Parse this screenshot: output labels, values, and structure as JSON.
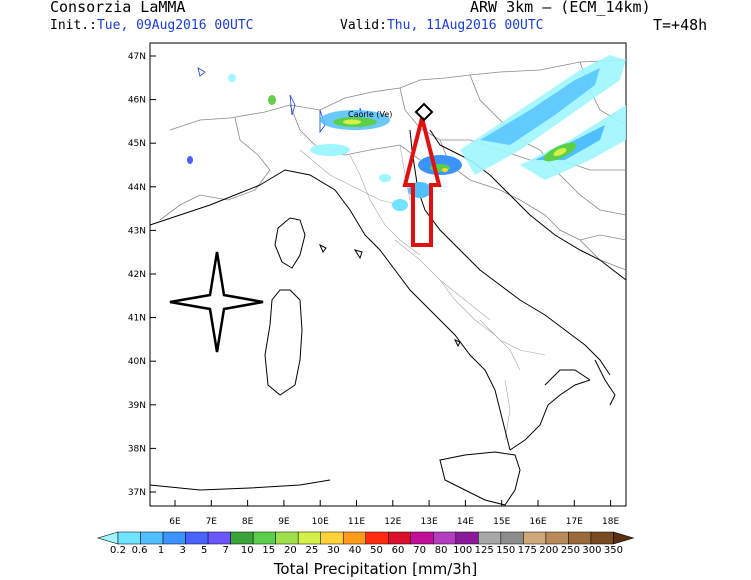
{
  "header": {
    "org": "Consorzia LaMMA",
    "model": "ARW 3km – (ECM_14km)",
    "init_label": "Init.:",
    "init_value": "Tue, 09Aug2016 00UTC",
    "valid_label": "Valid:",
    "valid_value": "Thu, 11Aug2016 00UTC",
    "lead_time": "T=+48h"
  },
  "map": {
    "place_label": "Caorle (Ve)",
    "lat_ticks": [
      "47N",
      "46N",
      "45N",
      "44N",
      "43N",
      "42N",
      "41N",
      "40N",
      "39N",
      "38N",
      "37N"
    ],
    "lon_ticks": [
      "6E",
      "7E",
      "8E",
      "9E",
      "10E",
      "11E",
      "12E",
      "13E",
      "14E",
      "15E",
      "16E",
      "17E",
      "18E"
    ],
    "arrow_color": "#e01010",
    "compass_rose_icon": "four-point-star-icon"
  },
  "colorbar": {
    "labels": [
      "0.2",
      "0.6",
      "1",
      "3",
      "5",
      "7",
      "10",
      "15",
      "20",
      "25",
      "30",
      "40",
      "50",
      "60",
      "70",
      "80",
      "100",
      "125",
      "150",
      "175",
      "200",
      "250",
      "300",
      "350"
    ],
    "colors": [
      "#9ff6ff",
      "#6fe3ff",
      "#4fbfff",
      "#3a93ff",
      "#4a63ff",
      "#6a55ff",
      "#3aa33a",
      "#5ccf4a",
      "#9fe04a",
      "#d6f04a",
      "#ffd23a",
      "#ff9a1a",
      "#ff2a10",
      "#d8102a",
      "#c0109a",
      "#b43cbf",
      "#8a1a9a",
      "#a8a8a8",
      "#8c8c8c",
      "#cfa87a",
      "#b88a5a",
      "#9b6a3a",
      "#7a4a22",
      "#5a3010"
    ],
    "title": "Total Precipitation [mm/3h]"
  }
}
